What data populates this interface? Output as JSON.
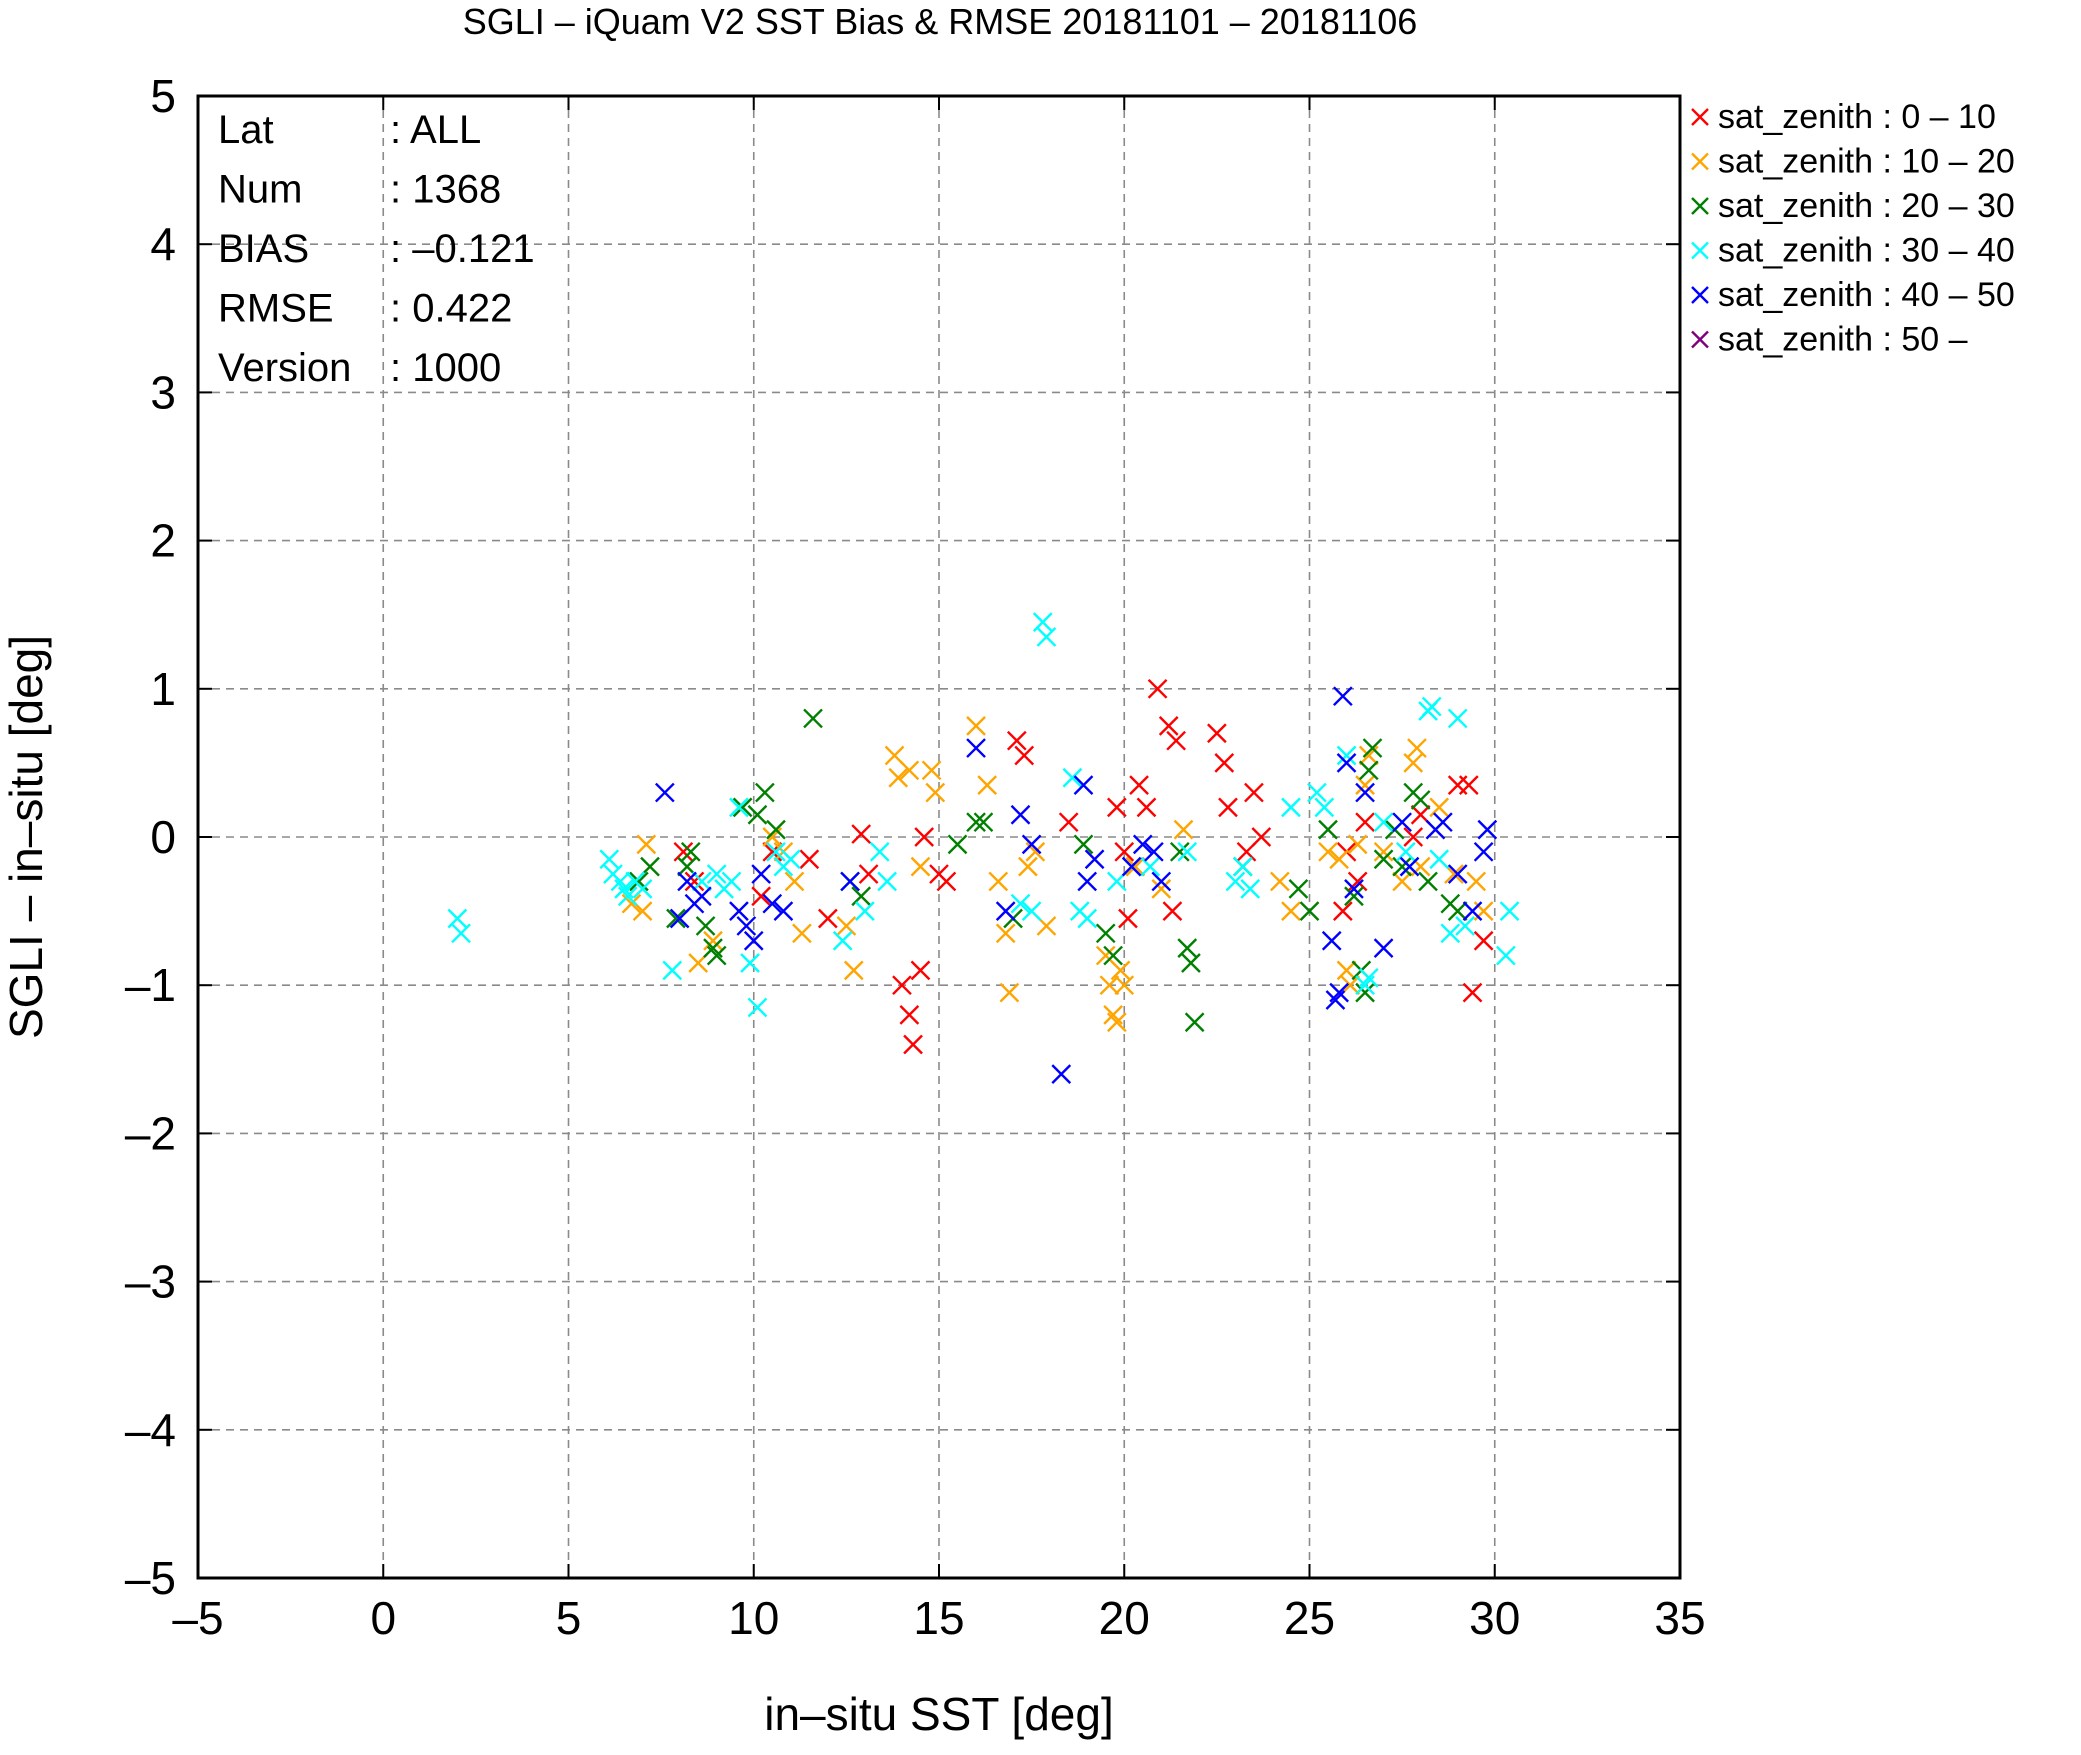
{
  "chart_data": {
    "type": "scatter",
    "title": "SGLI – iQuam V2 SST Bias & RMSE 20181101 – 20181106",
    "xlabel": "in–situ SST [deg]",
    "ylabel": "SGLI – in–situ [deg]",
    "xlim": [
      -5,
      35
    ],
    "ylim": [
      -5,
      5
    ],
    "x_ticks": [
      -5,
      0,
      5,
      10,
      15,
      20,
      25,
      30,
      35
    ],
    "y_ticks": [
      -5,
      -4,
      -3,
      -2,
      -1,
      0,
      1,
      2,
      3,
      4,
      5
    ],
    "x_tick_labels": [
      "–5",
      "0",
      "5",
      "10",
      "15",
      "20",
      "25",
      "30",
      "35"
    ],
    "y_tick_labels": [
      "–5",
      "–4",
      "–3",
      "–2",
      "–1",
      "0",
      "1",
      "2",
      "3",
      "4",
      "5"
    ],
    "grid": true,
    "legend_position": "outside-top-right",
    "stats": [
      {
        "label": "Lat",
        "value": ": ALL"
      },
      {
        "label": "Num",
        "value": ": 1368"
      },
      {
        "label": "BIAS",
        "value": ": –0.121"
      },
      {
        "label": "RMSE",
        "value": ": 0.422"
      },
      {
        "label": "Version",
        "value": ": 1000"
      }
    ],
    "series": [
      {
        "name": "sat_zenith :  0 – 10",
        "color": "#ff0000",
        "points": [
          [
            8.1,
            -0.1
          ],
          [
            8.4,
            -0.3
          ],
          [
            10.2,
            -0.4
          ],
          [
            10.5,
            -0.1
          ],
          [
            11.5,
            -0.15
          ],
          [
            12.0,
            -0.55
          ],
          [
            12.9,
            0.02
          ],
          [
            13.1,
            -0.25
          ],
          [
            14.0,
            -1.0
          ],
          [
            14.2,
            -1.2
          ],
          [
            14.3,
            -1.4
          ],
          [
            14.5,
            -0.9
          ],
          [
            14.6,
            0.0
          ],
          [
            15.0,
            -0.25
          ],
          [
            15.2,
            -0.3
          ],
          [
            17.1,
            0.65
          ],
          [
            17.3,
            0.55
          ],
          [
            18.5,
            0.1
          ],
          [
            19.8,
            0.2
          ],
          [
            20.0,
            -0.1
          ],
          [
            20.1,
            -0.55
          ],
          [
            20.4,
            0.35
          ],
          [
            20.6,
            0.2
          ],
          [
            20.9,
            1.0
          ],
          [
            21.2,
            0.75
          ],
          [
            21.3,
            -0.5
          ],
          [
            21.4,
            0.65
          ],
          [
            22.5,
            0.7
          ],
          [
            22.7,
            0.5
          ],
          [
            22.8,
            0.2
          ],
          [
            23.3,
            -0.1
          ],
          [
            23.5,
            0.3
          ],
          [
            23.7,
            0.0
          ],
          [
            25.9,
            -0.5
          ],
          [
            26.0,
            -0.1
          ],
          [
            26.3,
            -0.3
          ],
          [
            26.5,
            0.1
          ],
          [
            27.8,
            0.0
          ],
          [
            28.0,
            0.15
          ],
          [
            29.0,
            0.35
          ],
          [
            29.3,
            0.35
          ],
          [
            29.4,
            -1.05
          ],
          [
            29.7,
            -0.7
          ]
        ]
      },
      {
        "name": "sat_zenith : 10 – 20",
        "color": "#ffa500",
        "points": [
          [
            6.7,
            -0.45
          ],
          [
            7.0,
            -0.5
          ],
          [
            7.1,
            -0.05
          ],
          [
            8.5,
            -0.85
          ],
          [
            8.9,
            -0.7
          ],
          [
            10.5,
            0.0
          ],
          [
            10.8,
            -0.1
          ],
          [
            11.1,
            -0.3
          ],
          [
            11.3,
            -0.65
          ],
          [
            12.5,
            -0.6
          ],
          [
            12.7,
            -0.9
          ],
          [
            13.8,
            0.55
          ],
          [
            13.9,
            0.4
          ],
          [
            14.2,
            0.45
          ],
          [
            14.5,
            -0.2
          ],
          [
            14.8,
            0.45
          ],
          [
            14.9,
            0.3
          ],
          [
            16.0,
            0.75
          ],
          [
            16.3,
            0.35
          ],
          [
            16.6,
            -0.3
          ],
          [
            16.8,
            -0.65
          ],
          [
            16.9,
            -1.05
          ],
          [
            17.4,
            -0.2
          ],
          [
            17.6,
            -0.1
          ],
          [
            17.9,
            -0.6
          ],
          [
            19.5,
            -0.8
          ],
          [
            19.6,
            -1.0
          ],
          [
            19.7,
            -1.2
          ],
          [
            19.8,
            -1.25
          ],
          [
            19.9,
            -0.9
          ],
          [
            20.0,
            -1.0
          ],
          [
            20.3,
            -0.2
          ],
          [
            21.0,
            -0.35
          ],
          [
            21.6,
            0.05
          ],
          [
            24.2,
            -0.3
          ],
          [
            24.5,
            -0.5
          ],
          [
            25.5,
            -0.1
          ],
          [
            25.8,
            -0.15
          ],
          [
            26.0,
            -0.9
          ],
          [
            26.1,
            -1.0
          ],
          [
            26.3,
            -0.05
          ],
          [
            26.5,
            0.35
          ],
          [
            26.6,
            0.55
          ],
          [
            27.0,
            -0.1
          ],
          [
            27.5,
            -0.3
          ],
          [
            27.8,
            0.5
          ],
          [
            27.9,
            0.6
          ],
          [
            28.0,
            -0.2
          ],
          [
            28.5,
            0.2
          ],
          [
            28.9,
            -0.25
          ],
          [
            29.5,
            -0.3
          ],
          [
            29.7,
            -0.5
          ]
        ]
      },
      {
        "name": "sat_zenith : 20 – 30",
        "color": "#008000",
        "points": [
          [
            6.9,
            -0.3
          ],
          [
            7.2,
            -0.2
          ],
          [
            7.9,
            -0.55
          ],
          [
            8.2,
            -0.2
          ],
          [
            8.3,
            -0.1
          ],
          [
            8.7,
            -0.6
          ],
          [
            8.9,
            -0.75
          ],
          [
            9.0,
            -0.8
          ],
          [
            9.7,
            0.2
          ],
          [
            10.1,
            0.15
          ],
          [
            10.3,
            0.3
          ],
          [
            10.6,
            0.05
          ],
          [
            11.6,
            0.8
          ],
          [
            12.6,
            -0.3
          ],
          [
            12.9,
            -0.4
          ],
          [
            15.5,
            -0.05
          ],
          [
            16.0,
            0.1
          ],
          [
            16.2,
            0.1
          ],
          [
            17.0,
            -0.55
          ],
          [
            18.9,
            -0.05
          ],
          [
            19.5,
            -0.65
          ],
          [
            19.7,
            -0.8
          ],
          [
            21.5,
            -0.1
          ],
          [
            21.7,
            -0.75
          ],
          [
            21.8,
            -0.85
          ],
          [
            21.9,
            -1.25
          ],
          [
            23.2,
            -0.2
          ],
          [
            24.7,
            -0.35
          ],
          [
            25.0,
            -0.5
          ],
          [
            25.5,
            0.05
          ],
          [
            26.2,
            -0.4
          ],
          [
            26.4,
            -0.9
          ],
          [
            26.5,
            -1.05
          ],
          [
            26.6,
            0.45
          ],
          [
            26.7,
            0.6
          ],
          [
            27.0,
            -0.15
          ],
          [
            27.3,
            0.05
          ],
          [
            27.5,
            -0.2
          ],
          [
            27.8,
            0.3
          ],
          [
            28.0,
            0.25
          ],
          [
            28.2,
            -0.3
          ],
          [
            28.8,
            -0.45
          ],
          [
            29.0,
            -0.5
          ]
        ]
      },
      {
        "name": "sat_zenith : 30 – 40",
        "color": "#00ffff",
        "points": [
          [
            2.0,
            -0.55
          ],
          [
            2.1,
            -0.65
          ],
          [
            6.1,
            -0.15
          ],
          [
            6.2,
            -0.25
          ],
          [
            6.4,
            -0.3
          ],
          [
            6.5,
            -0.35
          ],
          [
            6.6,
            -0.4
          ],
          [
            6.8,
            -0.3
          ],
          [
            7.0,
            -0.35
          ],
          [
            7.8,
            -0.9
          ],
          [
            8.6,
            -0.3
          ],
          [
            9.0,
            -0.25
          ],
          [
            9.2,
            -0.35
          ],
          [
            9.4,
            -0.3
          ],
          [
            9.6,
            0.2
          ],
          [
            9.9,
            -0.85
          ],
          [
            10.1,
            -1.15
          ],
          [
            10.6,
            -0.1
          ],
          [
            10.8,
            -0.2
          ],
          [
            11.0,
            -0.15
          ],
          [
            12.4,
            -0.7
          ],
          [
            13.0,
            -0.5
          ],
          [
            13.4,
            -0.1
          ],
          [
            13.6,
            -0.3
          ],
          [
            17.2,
            -0.45
          ],
          [
            17.5,
            -0.5
          ],
          [
            17.8,
            1.45
          ],
          [
            17.9,
            1.35
          ],
          [
            18.6,
            0.4
          ],
          [
            18.8,
            -0.5
          ],
          [
            19.0,
            -0.55
          ],
          [
            19.8,
            -0.3
          ],
          [
            20.7,
            -0.2
          ],
          [
            21.7,
            -0.1
          ],
          [
            23.0,
            -0.3
          ],
          [
            23.2,
            -0.2
          ],
          [
            23.4,
            -0.35
          ],
          [
            24.5,
            0.2
          ],
          [
            25.2,
            0.3
          ],
          [
            25.4,
            0.2
          ],
          [
            26.0,
            0.55
          ],
          [
            26.5,
            -1.0
          ],
          [
            26.6,
            -0.95
          ],
          [
            27.0,
            0.1
          ],
          [
            27.6,
            -0.1
          ],
          [
            28.2,
            0.85
          ],
          [
            28.3,
            0.88
          ],
          [
            28.5,
            -0.15
          ],
          [
            28.8,
            -0.65
          ],
          [
            29.0,
            0.8
          ],
          [
            29.2,
            -0.6
          ],
          [
            30.3,
            -0.8
          ],
          [
            30.4,
            -0.5
          ]
        ]
      },
      {
        "name": "sat_zenith : 40 – 50",
        "color": "#0000ff",
        "points": [
          [
            7.6,
            0.3
          ],
          [
            8.0,
            -0.55
          ],
          [
            8.2,
            -0.3
          ],
          [
            8.4,
            -0.45
          ],
          [
            8.6,
            -0.4
          ],
          [
            9.6,
            -0.5
          ],
          [
            9.8,
            -0.6
          ],
          [
            10.0,
            -0.7
          ],
          [
            10.2,
            -0.25
          ],
          [
            10.5,
            -0.45
          ],
          [
            10.8,
            -0.5
          ],
          [
            12.6,
            -0.3
          ],
          [
            16.0,
            0.6
          ],
          [
            16.8,
            -0.5
          ],
          [
            17.2,
            0.15
          ],
          [
            17.5,
            -0.05
          ],
          [
            18.3,
            -1.6
          ],
          [
            18.9,
            0.35
          ],
          [
            19.0,
            -0.3
          ],
          [
            19.2,
            -0.15
          ],
          [
            20.2,
            -0.2
          ],
          [
            20.5,
            -0.05
          ],
          [
            20.8,
            -0.1
          ],
          [
            21.0,
            -0.3
          ],
          [
            25.6,
            -0.7
          ],
          [
            25.7,
            -1.1
          ],
          [
            25.8,
            -1.05
          ],
          [
            25.9,
            0.95
          ],
          [
            26.0,
            0.5
          ],
          [
            26.2,
            -0.35
          ],
          [
            26.5,
            0.3
          ],
          [
            27.0,
            -0.75
          ],
          [
            27.5,
            0.1
          ],
          [
            27.7,
            -0.2
          ],
          [
            28.4,
            0.05
          ],
          [
            28.6,
            0.1
          ],
          [
            29.0,
            -0.25
          ],
          [
            29.4,
            -0.5
          ],
          [
            29.7,
            -0.1
          ],
          [
            29.8,
            0.05
          ]
        ]
      },
      {
        "name": "sat_zenith : 50 –",
        "color": "#800080",
        "points": []
      }
    ]
  }
}
